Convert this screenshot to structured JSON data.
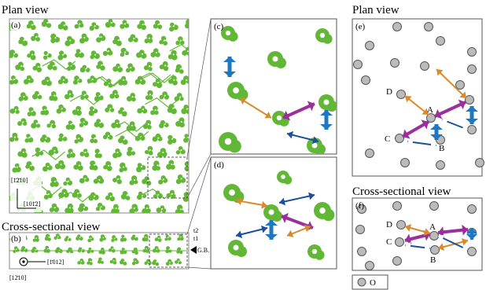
{
  "left": {
    "plan_title": "Plan view",
    "panel_a": "(a)",
    "axis_up": "[1̄2̄10]",
    "axis_right": "[101̄2]",
    "cross_title": "Cross-sectional view",
    "panel_b": "(b)",
    "axis_b_right": "[1̄012]",
    "axis_b_out": "[12̄10]",
    "t2": "t2",
    "t1": "t1",
    "gb": "G.B."
  },
  "middle": {
    "panel_c": "(c)",
    "panel_d": "(d)"
  },
  "right": {
    "plan_title": "Plan view",
    "panel_e": "(e)",
    "e_labels": [
      "D",
      "A",
      "C",
      "B"
    ],
    "cross_title": "Cross-sectional view",
    "panel_f": "(f)",
    "f_labels": [
      "D",
      "A",
      "C",
      "B"
    ],
    "legend_label": "O"
  }
}
